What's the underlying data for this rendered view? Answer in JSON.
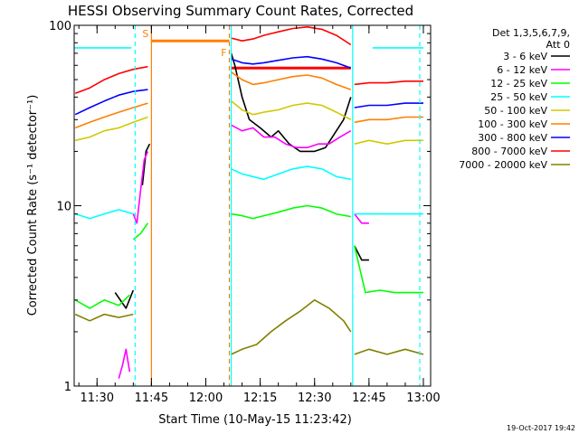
{
  "chart_data": {
    "type": "line",
    "title": "HESSI Observing Summary Count Rates, Corrected",
    "xlabel": "Start Time (10-May-15 11:23:42)",
    "ylabel": "Corrected Count Rate (s⁻¹ detector⁻¹)",
    "y_scale": "log",
    "ylim": [
      1,
      100
    ],
    "xlim": [
      "11:23:42",
      "13:02:00"
    ],
    "y_ticks": [
      "1",
      "10",
      "100"
    ],
    "x_ticks": [
      {
        "t": "11:30:00",
        "label": "11:30"
      },
      {
        "t": "11:45:00",
        "label": "11:45"
      },
      {
        "t": "12:00:00",
        "label": "12:00"
      },
      {
        "t": "12:15:00",
        "label": "12:15"
      },
      {
        "t": "12:30:00",
        "label": "12:30"
      },
      {
        "t": "12:45:00",
        "label": "12:45"
      },
      {
        "t": "13:00:00",
        "label": "13:00"
      }
    ],
    "legend": {
      "placement": "right",
      "header": [
        "Det 1,3,5,6,7,9,",
        "Att 0"
      ],
      "entries": [
        {
          "label": "3 - 6 keV",
          "color": "#000000"
        },
        {
          "label": "6 - 12 keV",
          "color": "#ff00ff"
        },
        {
          "label": "12 - 25 keV",
          "color": "#00ff00"
        },
        {
          "label": "25 - 50 keV",
          "color": "#00ffff"
        },
        {
          "label": "50 - 100 keV",
          "color": "#d2c800"
        },
        {
          "label": "100 - 300 keV",
          "color": "#ff7f00"
        },
        {
          "label": "300 - 800 keV",
          "color": "#0000ff"
        },
        {
          "label": "800 - 7000 keV",
          "color": "#ff0000"
        },
        {
          "label": "7000 - 20000 keV",
          "color": "#808000"
        }
      ]
    },
    "markers": [
      {
        "label": "S",
        "t": "11:45:00",
        "color": "#ff7f00"
      },
      {
        "label": "F",
        "t": "12:06:30",
        "color": "#ff7f00"
      }
    ],
    "series": [
      {
        "name": "3 - 6 keV",
        "color": "#000000",
        "segments": [
          [
            [
              "11:35:00",
              3.3
            ],
            [
              "11:38:00",
              2.7
            ],
            [
              "11:40:00",
              3.4
            ]
          ],
          [
            [
              "11:42:30",
              13
            ],
            [
              "11:43:30",
              20
            ],
            [
              "11:44:30",
              22
            ]
          ],
          [
            [
              "12:07:00",
              70
            ],
            [
              "12:08:00",
              60
            ],
            [
              "12:10:00",
              40
            ],
            [
              "12:12:00",
              30
            ],
            [
              "12:15:00",
              27
            ],
            [
              "12:18:00",
              24
            ],
            [
              "12:20:00",
              26
            ],
            [
              "12:23:00",
              22
            ],
            [
              "12:26:00",
              20
            ],
            [
              "12:30:00",
              20
            ],
            [
              "12:33:00",
              21
            ],
            [
              "12:36:00",
              26
            ],
            [
              "12:38:00",
              30
            ],
            [
              "12:40:00",
              40
            ]
          ],
          [
            [
              "12:41:00",
              6
            ],
            [
              "12:43:00",
              5
            ],
            [
              "12:45:00",
              5
            ]
          ]
        ]
      },
      {
        "name": "6 - 12 keV",
        "color": "#ff00ff",
        "segments": [
          [
            [
              "11:36:00",
              1.1
            ],
            [
              "11:37:00",
              1.3
            ],
            [
              "11:38:00",
              1.6
            ],
            [
              "11:39:00",
              1.2
            ]
          ],
          [
            [
              "11:40:00",
              9
            ],
            [
              "11:41:00",
              8
            ],
            [
              "11:42:00",
              12
            ],
            [
              "11:43:00",
              18
            ],
            [
              "11:44:00",
              20
            ]
          ],
          [
            [
              "12:07:00",
              28
            ],
            [
              "12:10:00",
              26
            ],
            [
              "12:13:00",
              27
            ],
            [
              "12:16:00",
              24
            ],
            [
              "12:19:00",
              24
            ],
            [
              "12:22:00",
              22
            ],
            [
              "12:25:00",
              21
            ],
            [
              "12:28:00",
              21
            ],
            [
              "12:31:00",
              22
            ],
            [
              "12:34:00",
              22
            ],
            [
              "12:37:00",
              24
            ],
            [
              "12:40:00",
              26
            ]
          ],
          [
            [
              "12:41:00",
              9
            ],
            [
              "12:43:00",
              8
            ],
            [
              "12:45:00",
              8
            ]
          ]
        ]
      },
      {
        "name": "12 - 25 keV",
        "color": "#00ff00",
        "segments": [
          [
            [
              "11:24:00",
              3.0
            ],
            [
              "11:28:00",
              2.7
            ],
            [
              "11:32:00",
              3.0
            ],
            [
              "11:36:00",
              2.8
            ],
            [
              "11:39:00",
              3.2
            ]
          ],
          [
            [
              "11:40:00",
              6.5
            ],
            [
              "11:42:00",
              7
            ],
            [
              "11:44:00",
              8
            ]
          ],
          [
            [
              "12:07:00",
              9
            ],
            [
              "12:10:00",
              8.8
            ],
            [
              "12:13:00",
              8.5
            ],
            [
              "12:16:00",
              8.8
            ],
            [
              "12:20:00",
              9.2
            ],
            [
              "12:24:00",
              9.7
            ],
            [
              "12:28:00",
              10
            ],
            [
              "12:32:00",
              9.7
            ],
            [
              "12:36:00",
              9
            ],
            [
              "12:40:00",
              8.7
            ]
          ],
          [
            [
              "12:41:00",
              6
            ],
            [
              "12:44:00",
              3.3
            ],
            [
              "12:48:00",
              3.4
            ],
            [
              "12:52:00",
              3.3
            ],
            [
              "12:56:00",
              3.3
            ],
            [
              "13:00:00",
              3.3
            ]
          ]
        ]
      },
      {
        "name": "25 - 50 keV",
        "color": "#00ffff",
        "segments": [
          [
            [
              "11:23:42",
              75
            ],
            [
              "11:28:00",
              75
            ],
            [
              "11:32:00",
              75
            ],
            [
              "11:36:00",
              75
            ],
            [
              "11:39:30",
              75
            ]
          ],
          [
            [
              "11:24:00",
              9
            ],
            [
              "11:28:00",
              8.5
            ],
            [
              "11:32:00",
              9
            ],
            [
              "11:36:00",
              9.5
            ],
            [
              "11:40:00",
              9
            ]
          ],
          [
            [
              "12:07:00",
              16
            ],
            [
              "12:10:00",
              15
            ],
            [
              "12:13:00",
              14.5
            ],
            [
              "12:16:00",
              14
            ],
            [
              "12:20:00",
              15
            ],
            [
              "12:24:00",
              16
            ],
            [
              "12:28:00",
              16.5
            ],
            [
              "12:32:00",
              16
            ],
            [
              "12:36:00",
              14.5
            ],
            [
              "12:40:00",
              14
            ]
          ],
          [
            [
              "12:41:00",
              9
            ],
            [
              "12:45:00",
              9
            ],
            [
              "12:50:00",
              9
            ],
            [
              "12:55:00",
              9
            ],
            [
              "13:00:00",
              9
            ]
          ],
          [
            [
              "12:46:00",
              75
            ],
            [
              "12:50:00",
              75
            ],
            [
              "12:55:00",
              75
            ],
            [
              "13:00:00",
              75
            ]
          ]
        ]
      },
      {
        "name": "50 - 100 keV",
        "color": "#d2c800",
        "segments": [
          [
            [
              "11:24:00",
              23
            ],
            [
              "11:28:00",
              24
            ],
            [
              "11:32:00",
              26
            ],
            [
              "11:36:00",
              27
            ],
            [
              "11:40:00",
              29
            ],
            [
              "11:44:00",
              31
            ]
          ],
          [
            [
              "12:07:00",
              38
            ],
            [
              "12:10:00",
              34
            ],
            [
              "12:13:00",
              32
            ],
            [
              "12:16:00",
              33
            ],
            [
              "12:20:00",
              34
            ],
            [
              "12:24:00",
              36
            ],
            [
              "12:28:00",
              37
            ],
            [
              "12:32:00",
              36
            ],
            [
              "12:36:00",
              33
            ],
            [
              "12:40:00",
              30
            ]
          ],
          [
            [
              "12:41:00",
              22
            ],
            [
              "12:45:00",
              23
            ],
            [
              "12:50:00",
              22
            ],
            [
              "12:55:00",
              23
            ],
            [
              "13:00:00",
              23
            ]
          ]
        ]
      },
      {
        "name": "100 - 300 keV",
        "color": "#ff7f00",
        "segments": [
          [
            [
              "11:24:00",
              27
            ],
            [
              "11:28:00",
              29
            ],
            [
              "11:32:00",
              31
            ],
            [
              "11:36:00",
              33
            ],
            [
              "11:40:00",
              35
            ],
            [
              "11:44:00",
              37
            ]
          ],
          [
            [
              "12:07:00",
              55
            ],
            [
              "12:10:00",
              50
            ],
            [
              "12:13:00",
              47
            ],
            [
              "12:16:00",
              48
            ],
            [
              "12:20:00",
              50
            ],
            [
              "12:24:00",
              52
            ],
            [
              "12:28:00",
              53
            ],
            [
              "12:32:00",
              51
            ],
            [
              "12:36:00",
              47
            ],
            [
              "12:40:00",
              44
            ]
          ],
          [
            [
              "12:41:00",
              29
            ],
            [
              "12:45:00",
              30
            ],
            [
              "12:50:00",
              30
            ],
            [
              "12:55:00",
              31
            ],
            [
              "13:00:00",
              31
            ]
          ]
        ]
      },
      {
        "name": "300 - 800 keV",
        "color": "#0000ff",
        "segments": [
          [
            [
              "11:24:00",
              32
            ],
            [
              "11:28:00",
              35
            ],
            [
              "11:32:00",
              38
            ],
            [
              "11:36:00",
              41
            ],
            [
              "11:40:00",
              43
            ],
            [
              "11:44:00",
              44
            ]
          ],
          [
            [
              "12:07:00",
              65
            ],
            [
              "12:10:00",
              62
            ],
            [
              "12:13:00",
              61
            ],
            [
              "12:16:00",
              62
            ],
            [
              "12:20:00",
              64
            ],
            [
              "12:24:00",
              66
            ],
            [
              "12:28:00",
              67
            ],
            [
              "12:32:00",
              65
            ],
            [
              "12:36:00",
              62
            ],
            [
              "12:40:00",
              58
            ]
          ],
          [
            [
              "12:41:00",
              35
            ],
            [
              "12:45:00",
              36
            ],
            [
              "12:50:00",
              36
            ],
            [
              "12:55:00",
              37
            ],
            [
              "13:00:00",
              37
            ]
          ]
        ]
      },
      {
        "name": "800 - 7000 keV",
        "color": "#ff0000",
        "segments": [
          [
            [
              "11:24:00",
              42
            ],
            [
              "11:28:00",
              45
            ],
            [
              "11:32:00",
              50
            ],
            [
              "11:36:00",
              54
            ],
            [
              "11:40:00",
              57
            ],
            [
              "11:44:00",
              59
            ]
          ],
          [
            [
              "12:07:00",
              85
            ],
            [
              "12:10:00",
              82
            ],
            [
              "12:13:00",
              84
            ],
            [
              "12:16:00",
              88
            ],
            [
              "12:20:00",
              92
            ],
            [
              "12:24:00",
              96
            ],
            [
              "12:28:00",
              98
            ],
            [
              "12:32:00",
              95
            ],
            [
              "12:36:00",
              88
            ],
            [
              "12:40:00",
              78
            ]
          ],
          [
            [
              "12:41:00",
              47
            ],
            [
              "12:45:00",
              48
            ],
            [
              "12:50:00",
              48
            ],
            [
              "12:55:00",
              49
            ],
            [
              "13:00:00",
              49
            ]
          ]
        ]
      },
      {
        "name": "7000 - 20000 keV",
        "color": "#808000",
        "segments": [
          [
            [
              "11:24:00",
              2.5
            ],
            [
              "11:28:00",
              2.3
            ],
            [
              "11:32:00",
              2.5
            ],
            [
              "11:36:00",
              2.4
            ],
            [
              "11:40:00",
              2.5
            ]
          ],
          [
            [
              "12:07:00",
              1.5
            ],
            [
              "12:10:00",
              1.6
            ],
            [
              "12:14:00",
              1.7
            ],
            [
              "12:18:00",
              2.0
            ],
            [
              "12:22:00",
              2.3
            ],
            [
              "12:26:00",
              2.6
            ],
            [
              "12:30:00",
              3.0
            ],
            [
              "12:34:00",
              2.7
            ],
            [
              "12:38:00",
              2.3
            ],
            [
              "12:40:00",
              2.0
            ]
          ],
          [
            [
              "12:41:00",
              1.5
            ],
            [
              "12:45:00",
              1.6
            ],
            [
              "12:50:00",
              1.5
            ],
            [
              "12:55:00",
              1.6
            ],
            [
              "13:00:00",
              1.5
            ]
          ]
        ]
      }
    ],
    "state_bars": [
      {
        "color": "#ff7f00",
        "t0": "11:45:00",
        "t1": "12:06:30",
        "value": 82
      },
      {
        "color": "#ff0000",
        "t0": "12:07:00",
        "t1": "12:40:00",
        "value": 58
      }
    ],
    "vertical_lines": [
      {
        "t": "11:40:30",
        "color": "#00ffff",
        "style": "dashed"
      },
      {
        "t": "11:45:00",
        "color": "#ff7f00",
        "style": "solid"
      },
      {
        "t": "12:06:30",
        "color": "#ff7f00",
        "style": "dashed"
      },
      {
        "t": "12:07:00",
        "color": "#00ffff",
        "style": "solid"
      },
      {
        "t": "12:40:30",
        "color": "#00ffff",
        "style": "solid"
      },
      {
        "t": "12:59:00",
        "color": "#00ffff",
        "style": "dashed"
      }
    ],
    "footer": "19-Oct-2017 19:42"
  }
}
